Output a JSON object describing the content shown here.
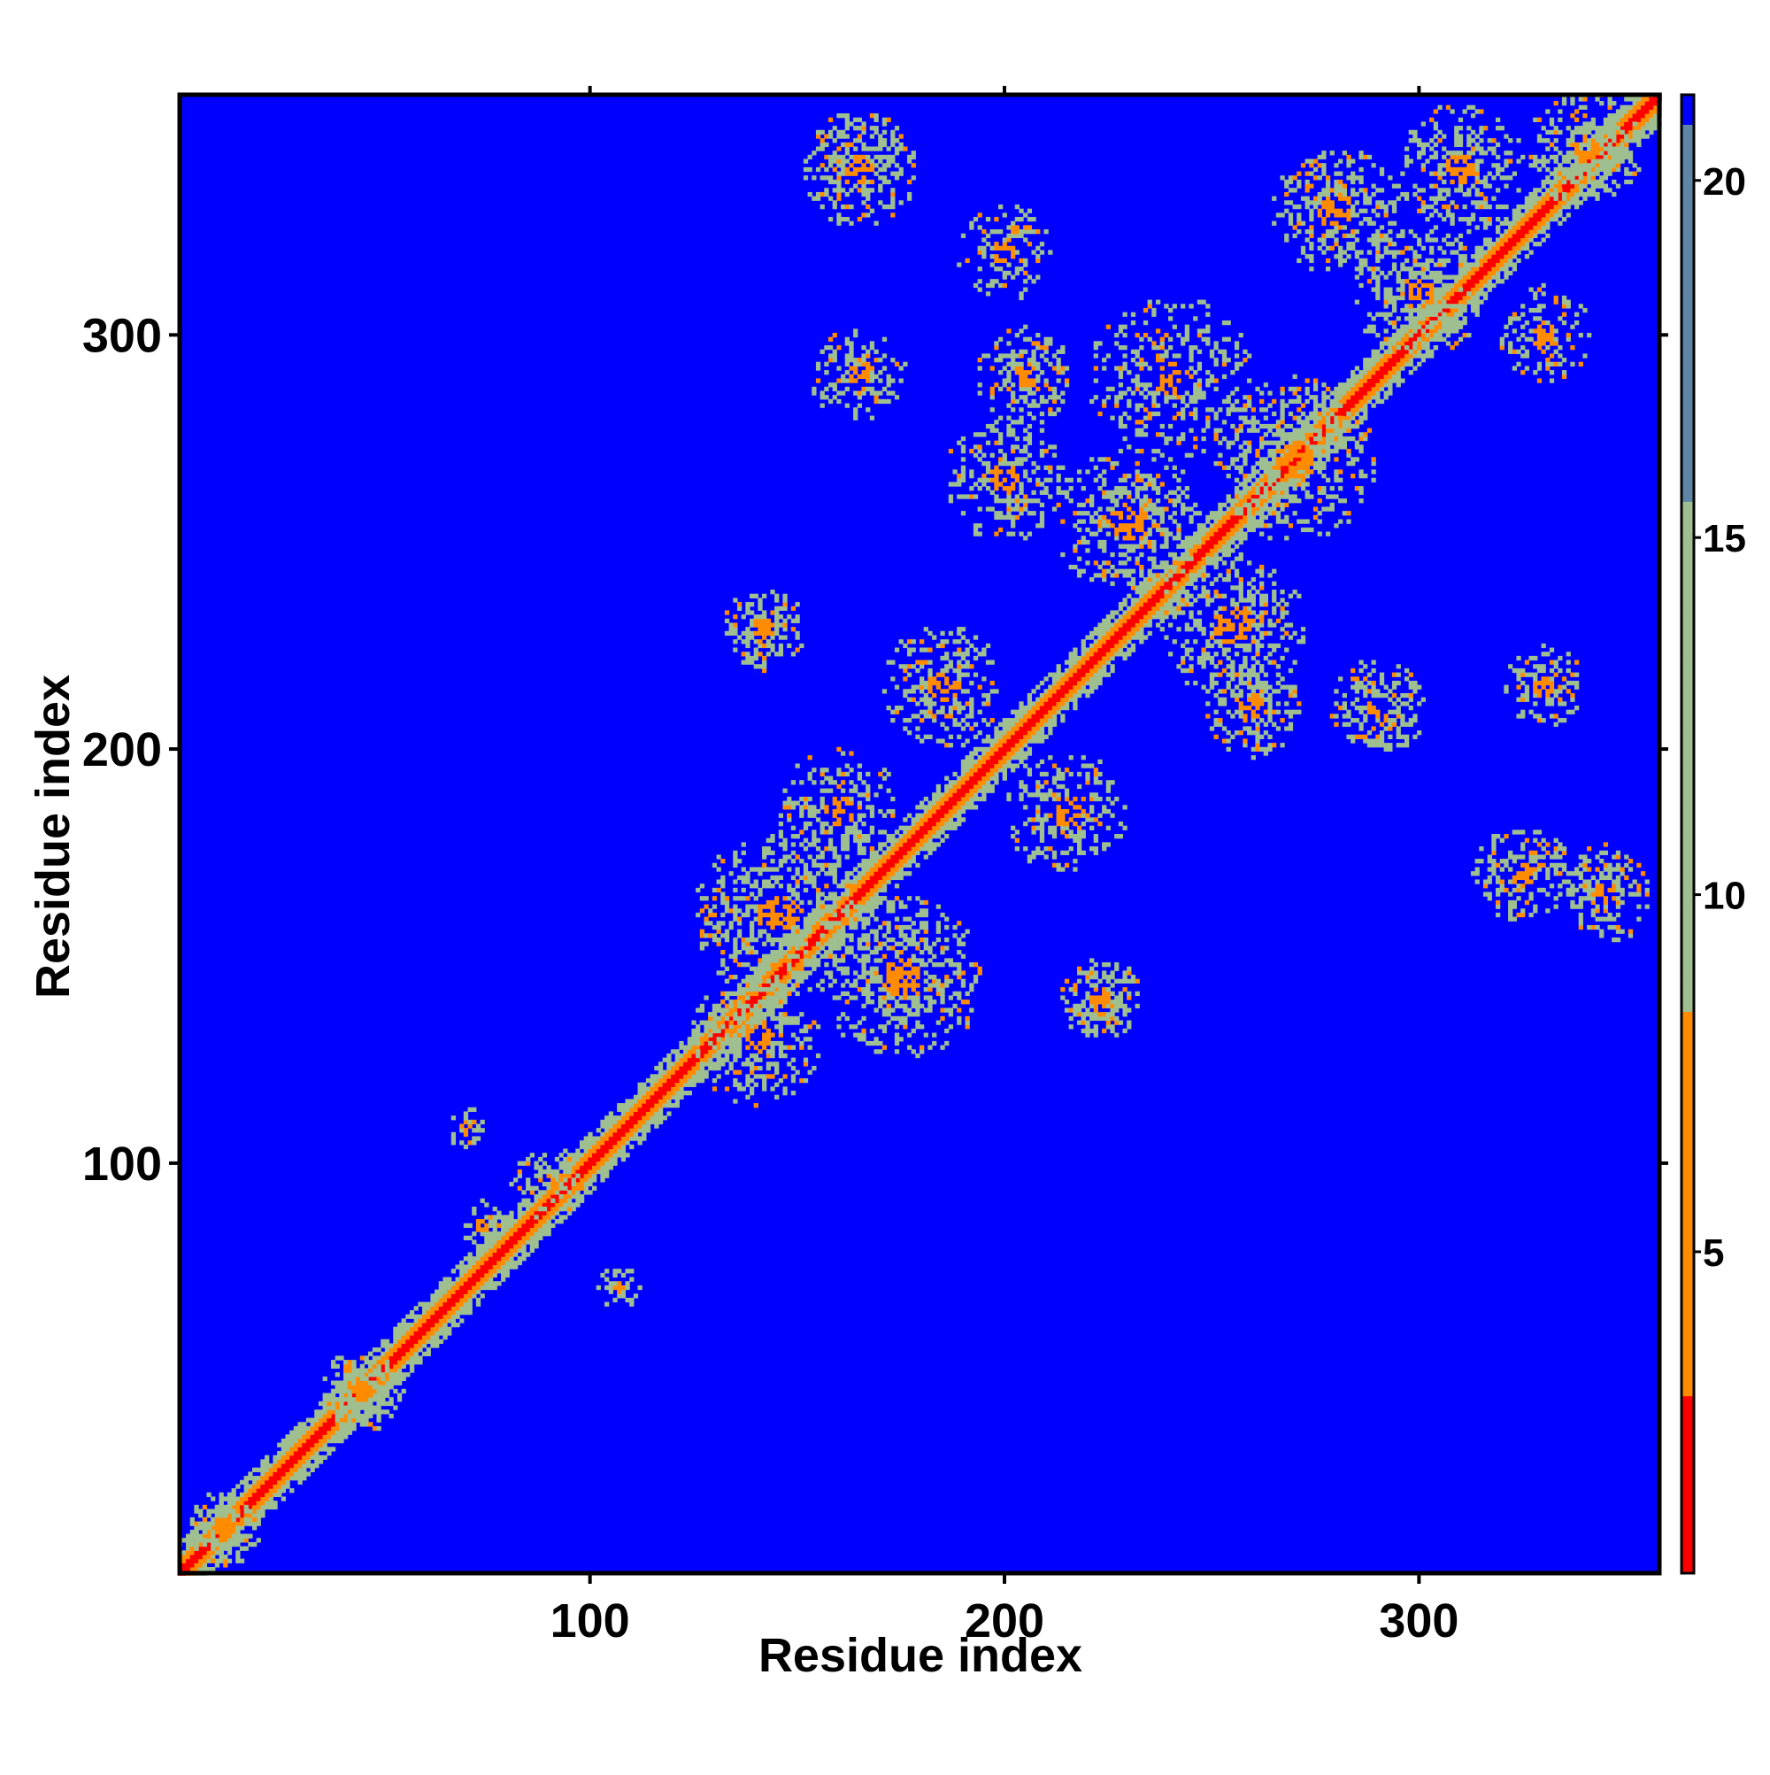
{
  "chart_data": {
    "type": "heatmap",
    "subtype": "residue distance map",
    "xlabel": "Residue index",
    "ylabel": "Residue index",
    "n_residues": 358,
    "xlim": [
      1,
      358
    ],
    "ylim": [
      1,
      358
    ],
    "x_ticks": [
      100,
      200,
      300
    ],
    "y_ticks": [
      100,
      200,
      300
    ],
    "colorbar": {
      "range": [
        0.5,
        21.2
      ],
      "ticks": [
        5,
        10,
        15,
        20
      ],
      "colors": {
        "near": "#ff0000",
        "mid": "#ff8c00",
        "far": "#9fbf90",
        "upper": "#5f86a6",
        "cap": "#0000ff"
      }
    },
    "background_color": "#0000ff",
    "diagonal": {
      "value": 1.5,
      "band_width": 7
    },
    "contact_clusters": [
      {
        "x": 45,
        "y": 45,
        "radius": 10,
        "density": 0.9
      },
      {
        "x": 12,
        "y": 12,
        "radius": 9,
        "density": 0.9
      },
      {
        "x": 70,
        "y": 109,
        "radius": 5,
        "density": 0.8
      },
      {
        "x": 107,
        "y": 70,
        "radius": 5,
        "density": 0.8
      },
      {
        "x": 74,
        "y": 85,
        "radius": 6,
        "density": 0.6
      },
      {
        "x": 90,
        "y": 95,
        "radius": 9,
        "density": 0.5
      },
      {
        "x": 145,
        "y": 160,
        "radius": 20,
        "density": 0.6
      },
      {
        "x": 175,
        "y": 145,
        "radius": 20,
        "density": 0.6
      },
      {
        "x": 160,
        "y": 185,
        "radius": 15,
        "density": 0.6
      },
      {
        "x": 140,
        "y": 130,
        "radius": 16,
        "density": 0.6
      },
      {
        "x": 142,
        "y": 229,
        "radius": 10,
        "density": 0.8
      },
      {
        "x": 223,
        "y": 140,
        "radius": 10,
        "density": 0.8
      },
      {
        "x": 185,
        "y": 215,
        "radius": 15,
        "density": 0.5
      },
      {
        "x": 215,
        "y": 185,
        "radius": 15,
        "density": 0.5
      },
      {
        "x": 230,
        "y": 255,
        "radius": 18,
        "density": 0.6
      },
      {
        "x": 255,
        "y": 230,
        "radius": 18,
        "density": 0.6
      },
      {
        "x": 200,
        "y": 265,
        "radius": 15,
        "density": 0.5
      },
      {
        "x": 240,
        "y": 290,
        "radius": 20,
        "density": 0.5
      },
      {
        "x": 270,
        "y": 270,
        "radius": 20,
        "density": 0.6
      },
      {
        "x": 205,
        "y": 290,
        "radius": 12,
        "density": 0.6
      },
      {
        "x": 165,
        "y": 340,
        "radius": 14,
        "density": 0.6
      },
      {
        "x": 165,
        "y": 290,
        "radius": 12,
        "density": 0.5
      },
      {
        "x": 200,
        "y": 320,
        "radius": 12,
        "density": 0.5
      },
      {
        "x": 280,
        "y": 330,
        "radius": 16,
        "density": 0.6
      },
      {
        "x": 310,
        "y": 340,
        "radius": 16,
        "density": 0.6
      },
      {
        "x": 300,
        "y": 310,
        "radius": 16,
        "density": 0.6
      },
      {
        "x": 330,
        "y": 300,
        "radius": 12,
        "density": 0.5
      },
      {
        "x": 340,
        "y": 345,
        "radius": 14,
        "density": 0.7
      },
      {
        "x": 290,
        "y": 210,
        "radius": 12,
        "density": 0.6
      },
      {
        "x": 325,
        "y": 170,
        "radius": 12,
        "density": 0.6
      },
      {
        "x": 345,
        "y": 165,
        "radius": 12,
        "density": 0.6
      },
      {
        "x": 330,
        "y": 215,
        "radius": 10,
        "density": 0.5
      },
      {
        "x": 260,
        "y": 210,
        "radius": 12,
        "density": 0.5
      }
    ]
  }
}
